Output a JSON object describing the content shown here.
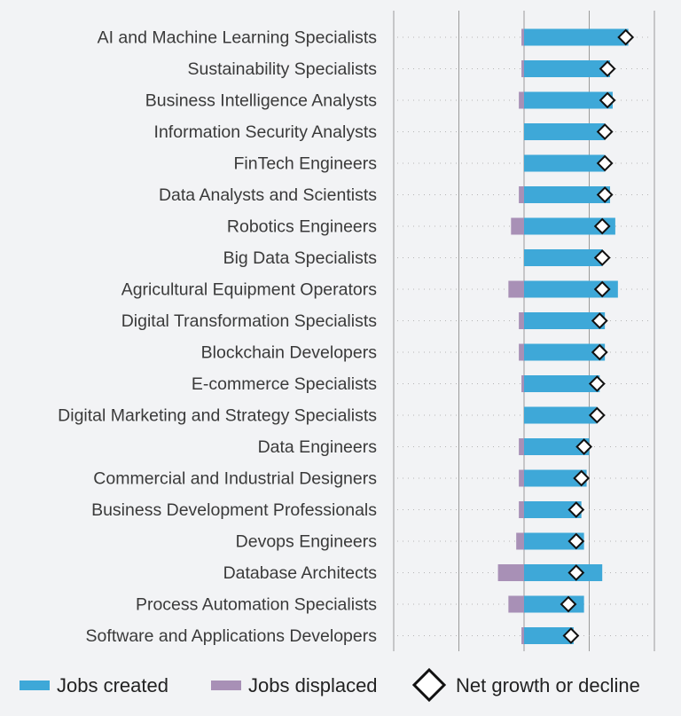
{
  "chart_data": {
    "type": "bar",
    "orientation": "horizontal",
    "stacked_diverging": true,
    "categories": [
      "AI and Machine Learning Specialists",
      "Sustainability Specialists",
      "Business Intelligence Analysts",
      "Information Security Analysts",
      "FinTech Engineers",
      "Data Analysts and Scientists",
      "Robotics Engineers",
      "Big Data Specialists",
      "Agricultural Equipment Operators",
      "Digital Transformation Specialists",
      "Blockchain Developers",
      "E-commerce Specialists",
      "Digital Marketing and Strategy Specialists",
      "Data Engineers",
      "Commercial and Industrial Designers",
      "Business Development Professionals",
      "Devops Engineers",
      "Database Architects",
      "Process Automation Specialists",
      "Software and Applications Developers"
    ],
    "series": [
      {
        "name": "Jobs created",
        "color": "#3ea8d8",
        "values": [
          40,
          33,
          34,
          31,
          31,
          33,
          35,
          30,
          36,
          31,
          31,
          29,
          28,
          25,
          24,
          22,
          23,
          30,
          23,
          19
        ]
      },
      {
        "name": "Jobs displaced",
        "color": "#a890b6",
        "values": [
          -1,
          -1,
          -2,
          0,
          0,
          -2,
          -5,
          0,
          -6,
          -2,
          -2,
          -1,
          0,
          -2,
          -2,
          -2,
          -3,
          -10,
          -6,
          -1
        ]
      },
      {
        "name": "Net growth or decline",
        "marker": "diamond",
        "values": [
          39,
          32,
          32,
          31,
          31,
          31,
          30,
          30,
          30,
          29,
          29,
          28,
          28,
          23,
          22,
          20,
          20,
          20,
          17,
          18
        ]
      }
    ],
    "xlim": [
      -50,
      50
    ],
    "x_gridlines": [
      -50,
      -25,
      0,
      25,
      50
    ],
    "legend_position": "bottom",
    "title": "",
    "xlabel": "",
    "ylabel": ""
  }
}
